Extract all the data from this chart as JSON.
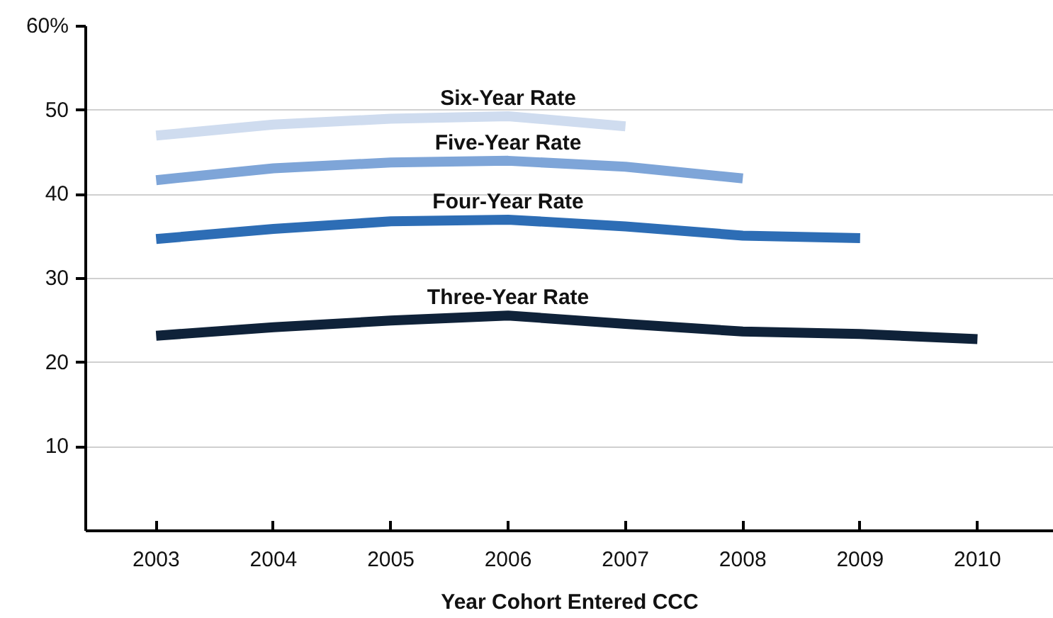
{
  "chart_data": {
    "type": "line",
    "xlabel": "Year Cohort Entered CCC",
    "categories": [
      "2003",
      "2004",
      "2005",
      "2006",
      "2007",
      "2008",
      "2009",
      "2010"
    ],
    "series": [
      {
        "name": "Six-Year Rate",
        "color": "#cfdcef",
        "values": [
          47.0,
          48.3,
          49.0,
          49.3,
          48.1,
          null,
          null,
          null
        ]
      },
      {
        "name": "Five-Year Rate",
        "color": "#7ea5d8",
        "values": [
          41.7,
          43.1,
          43.8,
          44.0,
          43.3,
          41.9,
          null,
          null
        ]
      },
      {
        "name": "Four-Year Rate",
        "color": "#2d6db5",
        "values": [
          34.7,
          35.9,
          36.8,
          37.0,
          36.2,
          35.1,
          34.8,
          null
        ]
      },
      {
        "name": "Three-Year Rate",
        "color": "#0f2239",
        "values": [
          23.2,
          24.2,
          25.0,
          25.6,
          24.6,
          23.7,
          23.4,
          22.8
        ]
      }
    ],
    "ylim": [
      0,
      60
    ],
    "yticks": [
      10,
      20,
      30,
      40,
      50,
      {
        "value": 60,
        "label": "60%"
      }
    ],
    "grid": "y",
    "marker": "none",
    "line_style": "solid"
  }
}
